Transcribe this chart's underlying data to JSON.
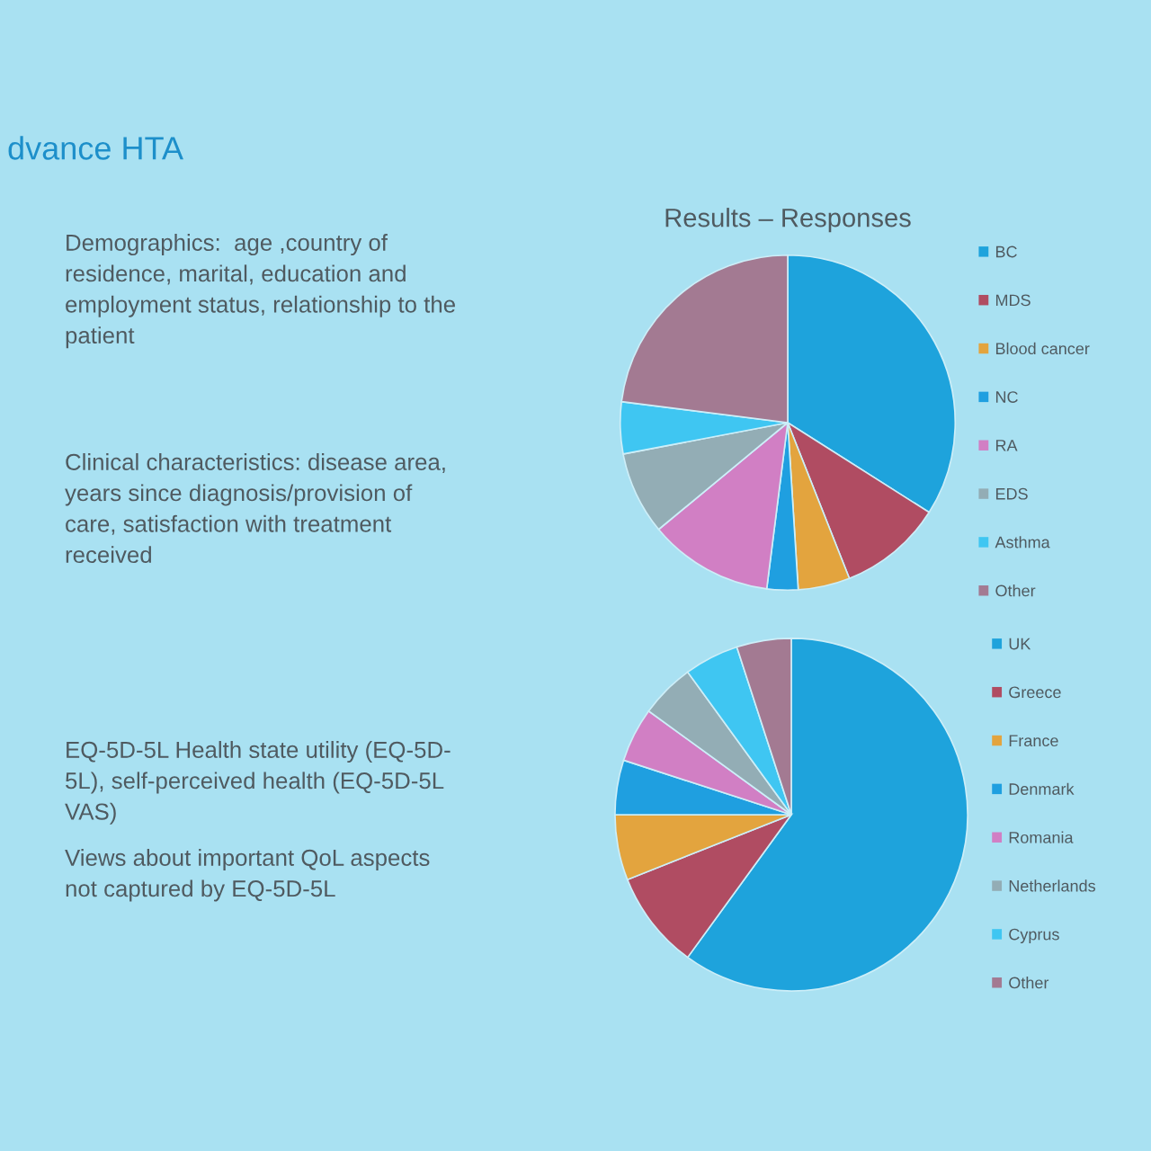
{
  "chart_data": [
    {
      "type": "other",
      "title": "dvance HTA",
      "annotations": [
        "Demographics:  age ,country of\nresidence, marital, education and\nemployment status, relationship to the\npatient",
        "Clinical characteristics: disease area,\nyears since diagnosis/provision of\ncare, satisfaction with treatment\nreceived",
        "EQ-5D-5L Health state utility (EQ-5D-\n5L), self-perceived health (EQ-5D-5L\nVAS)",
        "Views about important QoL aspects\nnot captured by EQ-5D-5L"
      ]
    },
    {
      "type": "pie",
      "title": "Results – Responses",
      "categories": [
        "BC",
        "MDS",
        "Blood cancer",
        "NC",
        "RA",
        "EDS",
        "Asthma",
        "Other"
      ],
      "values": [
        34,
        10,
        5,
        3,
        12,
        8,
        5,
        23
      ],
      "colors": [
        "#1ea3dc",
        "#b04c62",
        "#e3a43e",
        "#1f9fe0",
        "#d17fc4",
        "#93adb5",
        "#3fc6f2",
        "#a37a92"
      ],
      "legend": "right"
    },
    {
      "type": "pie",
      "categories": [
        "UK",
        "Greece",
        "France",
        "Denmark",
        "Romania",
        "Netherlands",
        "Cyprus",
        "Other"
      ],
      "values": [
        60,
        9,
        6,
        5,
        5,
        5,
        5,
        5
      ],
      "colors": [
        "#1ea3dc",
        "#b04c62",
        "#e3a43e",
        "#1f9fe0",
        "#d17fc4",
        "#93adb5",
        "#3fc6f2",
        "#a37a92"
      ],
      "legend": "right"
    }
  ]
}
